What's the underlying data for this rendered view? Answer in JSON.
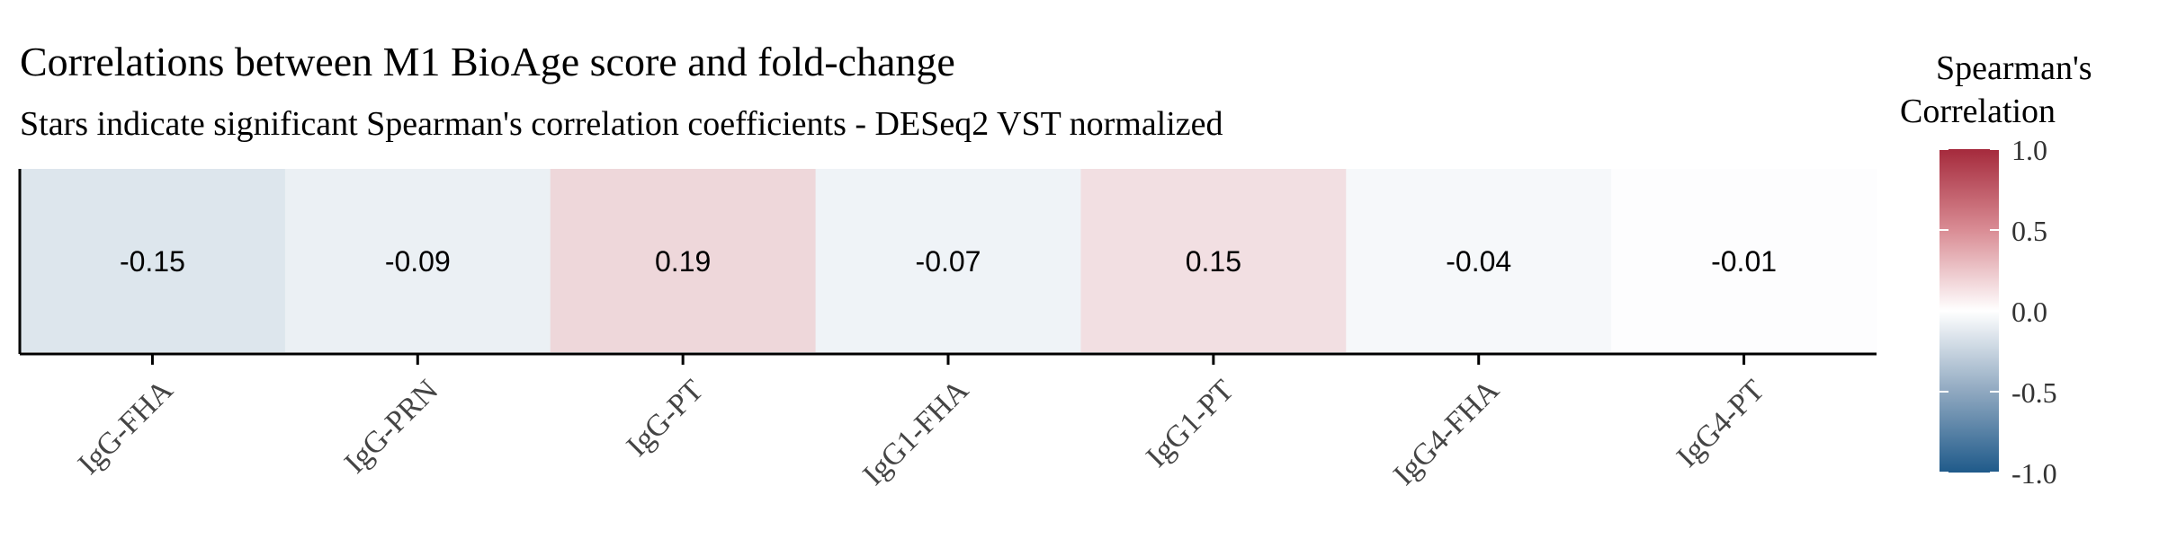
{
  "chart_data": {
    "type": "heatmap",
    "title": "Correlations between M1 BioAge score and fold-change",
    "subtitle": "Stars indicate significant Spearman's correlation coefficients - DESeq2 VST normalized",
    "xlabel": "",
    "ylabel": "",
    "categories": [
      "IgG-FHA",
      "IgG-PRN",
      "IgG-PT",
      "IgG1-FHA",
      "IgG1-PT",
      "IgG4-FHA",
      "IgG4-PT"
    ],
    "values": [
      -0.15,
      -0.09,
      0.19,
      -0.07,
      0.15,
      -0.04,
      -0.01
    ],
    "value_labels": [
      "-0.15",
      "-0.09",
      "0.19",
      "-0.07",
      "0.15",
      "-0.04",
      "-0.01"
    ],
    "legend": {
      "title_line1": "Spearman's",
      "title_line2": "Correlation",
      "placement": "right",
      "range": [
        -1.0,
        1.0
      ],
      "ticks": [
        1.0,
        0.5,
        0.0,
        -0.5,
        -1.0
      ],
      "tick_labels": [
        "1.0",
        "0.5",
        "0.0",
        "-0.5",
        "-1.0"
      ]
    },
    "colors": {
      "low": "#1f5a8a",
      "mid": "#ffffff",
      "high": "#a52a3c"
    }
  }
}
